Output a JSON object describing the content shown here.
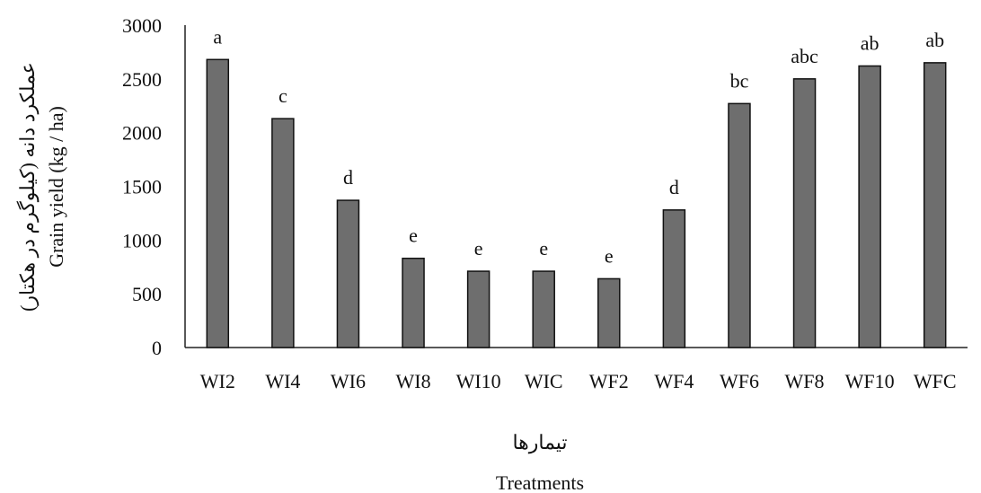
{
  "chart_data": {
    "type": "bar",
    "categories": [
      "WI2",
      "WI4",
      "WI6",
      "WI8",
      "WI10",
      "WIC",
      "WF2",
      "WF4",
      "WF6",
      "WF8",
      "WF10",
      "WFC"
    ],
    "values": [
      2680,
      2130,
      1370,
      830,
      710,
      710,
      640,
      1280,
      2270,
      2500,
      2620,
      2650
    ],
    "significance_letters": [
      "a",
      "c",
      "d",
      "e",
      "e",
      "e",
      "e",
      "d",
      "bc",
      "abc",
      "ab",
      "ab"
    ],
    "ylim": [
      0,
      3000
    ],
    "yticks": [
      0,
      500,
      1000,
      1500,
      2000,
      2500,
      3000
    ],
    "ylabel": "Grain yield (kg / ha)",
    "ylabel_fa": "عملکرد دانه (کیلوگرم در هکتار)",
    "xlabel": "Treatments",
    "xlabel_fa": "تیمارها",
    "bar_color": "#6e6e6e",
    "bar_stroke": "#111111",
    "grid": false,
    "legend": "none"
  }
}
